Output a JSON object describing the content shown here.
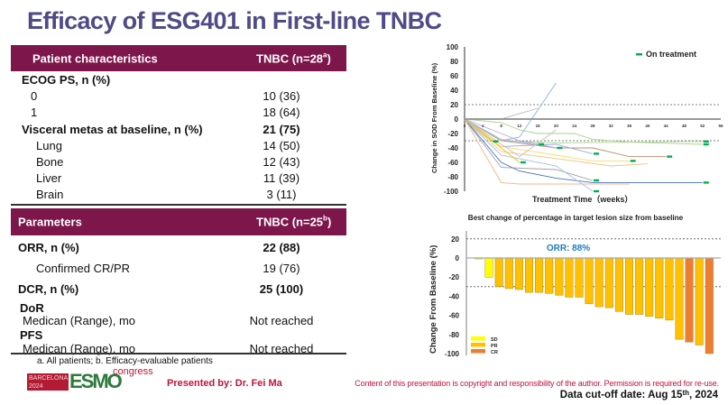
{
  "title": "Efficacy of ESG401 in First-line TNBC",
  "table1": {
    "header_label": "Patient characteristics",
    "header_value": "TNBC (n=28",
    "header_sup": "a",
    "header_close": ")",
    "rows": [
      {
        "label": "ECOG PS, n (%)",
        "value": "",
        "bold": true,
        "indent": 0
      },
      {
        "label": "0",
        "value": "10 (36)",
        "bold": false,
        "indent": 1
      },
      {
        "label": "1",
        "value": "18 (64)",
        "bold": false,
        "indent": 1
      },
      {
        "label": "Visceral metas at baseline, n (%)",
        "value": "21 (75)",
        "bold": true,
        "indent": 0
      },
      {
        "label": "Lung",
        "value": "14 (50)",
        "bold": false,
        "indent": 2
      },
      {
        "label": "Bone",
        "value": "12 (43)",
        "bold": false,
        "indent": 2
      },
      {
        "label": "Liver",
        "value": "11 (39)",
        "bold": false,
        "indent": 2
      },
      {
        "label": "Brain",
        "value": "3 (11)",
        "bold": false,
        "indent": 2
      }
    ]
  },
  "table2": {
    "header_label": "Parameters",
    "header_value": "TNBC (n=25",
    "header_sup": "b",
    "header_close": ")",
    "rows": [
      {
        "label": "ORR, n (%)",
        "value": "22 (88)"
      },
      {
        "label": "Confirmed CR/PR",
        "value": "19 (76)"
      },
      {
        "label": "DCR, n (%)",
        "value": "25 (100)"
      },
      {
        "label": "DoR",
        "value": ""
      },
      {
        "label": "Medican (Range), mo",
        "value": "Not reached"
      },
      {
        "label": "PFS",
        "value": ""
      },
      {
        "label": "Medican (Range), mo",
        "value": "Not reached"
      }
    ]
  },
  "footnote": "a. All patients; b. Efficacy-evaluable patients",
  "logo": {
    "city": "BARCELONA",
    "year": "2024",
    "brand": "ESMO",
    "word": "congress"
  },
  "presenter": "Presented by: Dr. Fei Ma",
  "copyright": "Content of this presentation is copyright and responsibility of the author. Permission is required for re-use.",
  "cutoff": {
    "prefix": "Data cut-off date: Aug 15",
    "sup": "th",
    "suffix": ", 2024"
  },
  "colors": {
    "title": "#4e4b86",
    "header": "#7d164b",
    "sd": "#ffff00",
    "pr": "#ffc000",
    "cr": "#ed7d31",
    "on_treatment": "#00b050",
    "orr": "#1f7ac4",
    "red_text": "#c0143c"
  },
  "chart_data": [
    {
      "type": "line",
      "title": "",
      "xlabel": "Treatment Time（weeks）",
      "ylabel": "Change in SOD From Baseline (%)",
      "xlim": [
        0,
        56
      ],
      "ylim": [
        -100,
        100
      ],
      "xticks": [
        0,
        4,
        8,
        12,
        16,
        20,
        24,
        28,
        32,
        36,
        40,
        44,
        48,
        52,
        56
      ],
      "yticks": [
        100,
        80,
        60,
        40,
        20,
        0,
        -20,
        -40,
        -60,
        -80,
        -100
      ],
      "reference_lines": [
        20,
        -30
      ],
      "legend": {
        "label": "On treatment",
        "position": "top-right"
      },
      "series": [
        {
          "color": "#8fb0e0",
          "points": [
            [
              0,
              0
            ],
            [
              8,
              -30
            ],
            [
              12,
              -25
            ],
            [
              20,
              50
            ]
          ],
          "on_treatment": false
        },
        {
          "color": "#b8b8b8",
          "points": [
            [
              0,
              0
            ],
            [
              8,
              0
            ],
            [
              16,
              15
            ]
          ],
          "on_treatment": false
        },
        {
          "color": "#a9d18e",
          "points": [
            [
              0,
              0
            ],
            [
              8,
              -5
            ],
            [
              12,
              -15
            ],
            [
              16,
              -20
            ],
            [
              24,
              -20
            ],
            [
              28,
              -28
            ],
            [
              36,
              -32
            ],
            [
              52,
              -35
            ]
          ],
          "on_treatment": true
        },
        {
          "color": "#a9d18e",
          "points": [
            [
              0,
              0
            ],
            [
              8,
              -30
            ],
            [
              20,
              -33
            ],
            [
              52,
              -31
            ]
          ],
          "on_treatment": true
        },
        {
          "color": "#c98b6a",
          "points": [
            [
              0,
              0
            ],
            [
              8,
              -30
            ],
            [
              20,
              -40
            ],
            [
              28,
              -40
            ],
            [
              36,
              -52
            ],
            [
              44,
              -52
            ]
          ],
          "on_treatment": true
        },
        {
          "color": "#8fb0e0",
          "points": [
            [
              0,
              0
            ],
            [
              8,
              -38
            ],
            [
              20,
              -35
            ],
            [
              28,
              -48
            ]
          ],
          "on_treatment": true
        },
        {
          "color": "#ffd966",
          "points": [
            [
              0,
              0
            ],
            [
              8,
              -38
            ],
            [
              20,
              -50
            ],
            [
              28,
              -58
            ],
            [
              36,
              -58
            ]
          ],
          "on_treatment": true
        },
        {
          "color": "#f4c27a",
          "points": [
            [
              0,
              0
            ],
            [
              8,
              -45
            ],
            [
              24,
              -58
            ],
            [
              32,
              -65
            ],
            [
              40,
              -62
            ]
          ],
          "on_treatment": false
        },
        {
          "color": "#a0a0a0",
          "points": [
            [
              0,
              0
            ],
            [
              8,
              -67
            ],
            [
              20,
              -70
            ],
            [
              28,
              -85
            ]
          ],
          "on_treatment": true
        },
        {
          "color": "#4472c4",
          "points": [
            [
              0,
              0
            ],
            [
              8,
              -60
            ],
            [
              12,
              -72
            ],
            [
              20,
              -82
            ],
            [
              28,
              -88
            ],
            [
              52,
              -88
            ]
          ],
          "on_treatment": true
        },
        {
          "color": "#f8b48a",
          "points": [
            [
              0,
              0
            ],
            [
              8,
              -88
            ],
            [
              12,
              -90
            ],
            [
              36,
              -90
            ]
          ],
          "on_treatment": false
        },
        {
          "color": "#9dc3e6",
          "points": [
            [
              0,
              0
            ],
            [
              8,
              -50
            ],
            [
              20,
              -65
            ],
            [
              28,
              -100
            ]
          ],
          "on_treatment": true
        },
        {
          "color": "#c0c0c0",
          "points": [
            [
              0,
              0
            ],
            [
              12,
              -52
            ],
            [
              20,
              -15
            ]
          ],
          "on_treatment": false
        },
        {
          "color": "#a9d18e",
          "points": [
            [
              0,
              0
            ],
            [
              6,
              -31
            ]
          ],
          "on_treatment": true
        },
        {
          "color": "#ffc000",
          "points": [
            [
              0,
              0
            ],
            [
              8,
              -40
            ],
            [
              12,
              -60
            ]
          ],
          "on_treatment": true
        },
        {
          "color": "#9dc3e6",
          "points": [
            [
              0,
              0
            ],
            [
              8,
              -28
            ],
            [
              16,
              -35
            ]
          ],
          "on_treatment": true
        },
        {
          "color": "#b4a7d6",
          "points": [
            [
              0,
              0
            ],
            [
              12,
              -30
            ],
            [
              20,
              -40
            ]
          ],
          "on_treatment": true
        }
      ]
    },
    {
      "type": "bar",
      "title": "Best change of percentage in target lesion size from baseline",
      "xlabel": "",
      "ylabel": "Change  From Baseline (%)",
      "ylim": [
        -100,
        30
      ],
      "yticks": [
        20,
        0,
        -20,
        -40,
        -60,
        -80,
        -100
      ],
      "reference_lines": [
        20,
        -30
      ],
      "annotation": "ORR: 88%",
      "legend": {
        "entries": [
          "SD",
          "PR",
          "CR"
        ],
        "position": "bottom-left"
      },
      "values": [
        -1,
        -20,
        -30,
        -32,
        -33,
        -36,
        -36,
        -37,
        -39,
        -41,
        -41,
        -48,
        -51,
        -52,
        -56,
        -59,
        -59,
        -61,
        -63,
        -65,
        -85,
        -88,
        -91,
        -100
      ],
      "response": [
        "SD",
        "SD",
        "PR",
        "PR",
        "PR",
        "PR",
        "PR",
        "PR",
        "PR",
        "PR",
        "PR",
        "PR",
        "PR",
        "PR",
        "PR",
        "PR",
        "PR",
        "PR",
        "PR",
        "PR",
        "PR",
        "CR",
        "PR",
        "CR"
      ]
    }
  ]
}
